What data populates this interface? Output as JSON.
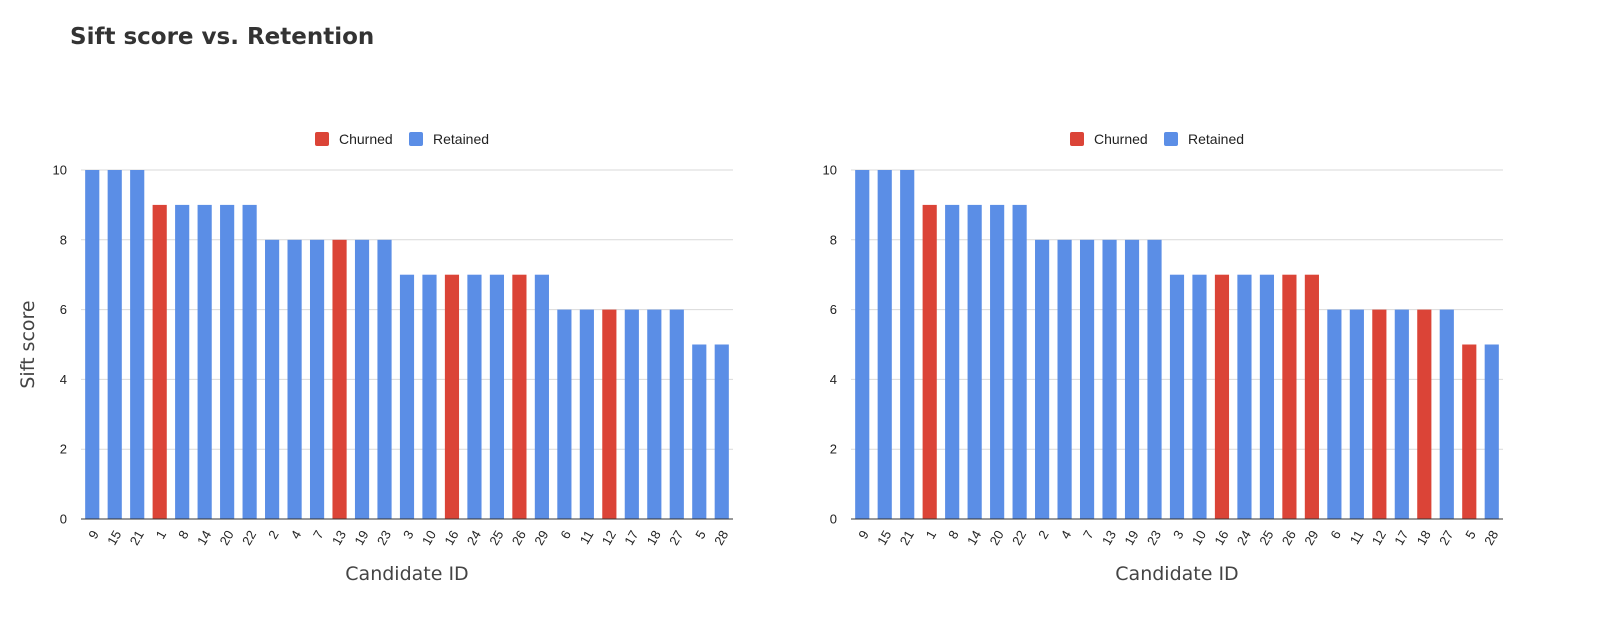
{
  "page": {
    "title": "Sift score vs. Retention"
  },
  "colors": {
    "churned": "#db4437",
    "retained": "#5b8ee6"
  },
  "chart_data": [
    {
      "type": "bar",
      "title": "",
      "xlabel": "Candidate ID",
      "ylabel": "Sift score",
      "ylim": [
        0,
        10
      ],
      "yticks": [
        0,
        2,
        4,
        6,
        8,
        10
      ],
      "grid": true,
      "legend": {
        "placement": "top",
        "entries": [
          "Churned",
          "Retained"
        ]
      },
      "categories": [
        "9",
        "15",
        "21",
        "1",
        "8",
        "14",
        "20",
        "22",
        "2",
        "4",
        "7",
        "13",
        "19",
        "23",
        "3",
        "10",
        "16",
        "24",
        "25",
        "26",
        "29",
        "6",
        "11",
        "12",
        "17",
        "18",
        "27",
        "5",
        "28"
      ],
      "values": [
        10,
        10,
        10,
        9,
        9,
        9,
        9,
        9,
        8,
        8,
        8,
        8,
        8,
        8,
        7,
        7,
        7,
        7,
        7,
        7,
        7,
        6,
        6,
        6,
        6,
        6,
        6,
        5,
        5
      ],
      "status": [
        "Retained",
        "Retained",
        "Retained",
        "Churned",
        "Retained",
        "Retained",
        "Retained",
        "Retained",
        "Retained",
        "Retained",
        "Retained",
        "Churned",
        "Retained",
        "Retained",
        "Retained",
        "Retained",
        "Churned",
        "Retained",
        "Retained",
        "Churned",
        "Retained",
        "Retained",
        "Retained",
        "Churned",
        "Retained",
        "Retained",
        "Retained",
        "Retained",
        "Retained"
      ]
    },
    {
      "type": "bar",
      "title": "",
      "xlabel": "Candidate ID",
      "ylabel": "",
      "ylim": [
        0,
        10
      ],
      "yticks": [
        0,
        2,
        4,
        6,
        8,
        10
      ],
      "grid": true,
      "legend": {
        "placement": "top",
        "entries": [
          "Churned",
          "Retained"
        ]
      },
      "categories": [
        "9",
        "15",
        "21",
        "1",
        "8",
        "14",
        "20",
        "22",
        "2",
        "4",
        "7",
        "13",
        "19",
        "23",
        "3",
        "10",
        "16",
        "24",
        "25",
        "26",
        "29",
        "6",
        "11",
        "12",
        "17",
        "18",
        "27",
        "5",
        "28"
      ],
      "values": [
        10,
        10,
        10,
        9,
        9,
        9,
        9,
        9,
        8,
        8,
        8,
        8,
        8,
        8,
        7,
        7,
        7,
        7,
        7,
        7,
        7,
        6,
        6,
        6,
        6,
        6,
        6,
        5,
        5
      ],
      "status": [
        "Retained",
        "Retained",
        "Retained",
        "Churned",
        "Retained",
        "Retained",
        "Retained",
        "Retained",
        "Retained",
        "Retained",
        "Retained",
        "Retained",
        "Retained",
        "Retained",
        "Retained",
        "Retained",
        "Churned",
        "Retained",
        "Retained",
        "Churned",
        "Churned",
        "Retained",
        "Retained",
        "Churned",
        "Retained",
        "Churned",
        "Retained",
        "Churned",
        "Retained"
      ]
    }
  ]
}
